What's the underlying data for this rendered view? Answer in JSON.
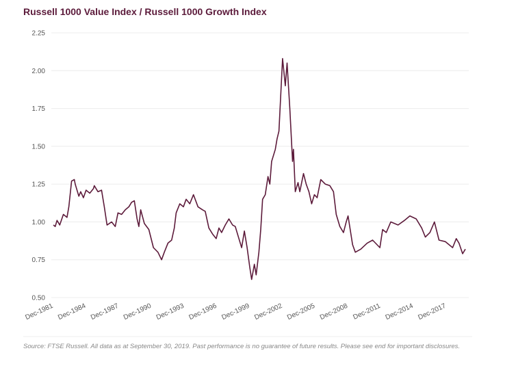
{
  "chart_data": {
    "type": "line",
    "title": "Russell 1000 Value Index / Russell 1000 Growth Index",
    "source": "Source: FTSE Russell. All data as at September 30, 2019. Past performance is no guarantee of future results. Please see end for important disclosures.",
    "x": [
      "Dec-1981",
      "Feb-1982",
      "Apr-1982",
      "Jul-1982",
      "Nov-1982",
      "Mar-1983",
      "May-1983",
      "Aug-1983",
      "Nov-1983",
      "Dec-1983",
      "Apr-1984",
      "Jun-1984",
      "Sep-1984",
      "Dec-1984",
      "Apr-1985",
      "Aug-1985",
      "Sep-1985",
      "Jan-1986",
      "May-1986",
      "Aug-1986",
      "Nov-1986",
      "Apr-1987",
      "Aug-1987",
      "Nov-1987",
      "Mar-1988",
      "Jul-1988",
      "Nov-1988",
      "Feb-1989",
      "May-1989",
      "Aug-1989",
      "Oct-1989",
      "Dec-1989",
      "Apr-1990",
      "Sep-1990",
      "Feb-1991",
      "Jul-1991",
      "Nov-1991",
      "Feb-1992",
      "Jun-1992",
      "Oct-1992",
      "Jan-1993",
      "Mar-1993",
      "Jul-1993",
      "Nov-1993",
      "Feb-1994",
      "Jun-1994",
      "Oct-1994",
      "Mar-1995",
      "Aug-1995",
      "Nov-1995",
      "Mar-1996",
      "Jul-1996",
      "Nov-1996",
      "Feb-1997",
      "May-1997",
      "Sep-1997",
      "Jan-1998",
      "May-1998",
      "Aug-1998",
      "Dec-1998",
      "Mar-1999",
      "Jun-1999",
      "Sep-1999",
      "Dec-1999",
      "Feb-2000",
      "May-2000",
      "Jul-2000",
      "Oct-2000",
      "Dec-2000",
      "Feb-2001",
      "May-2001",
      "Aug-2001",
      "Oct-2001",
      "Dec-2001",
      "Apr-2002",
      "Jun-2002",
      "Aug-2002",
      "Dec-2002",
      "Mar-2003",
      "May-2003",
      "Aug-2003",
      "Nov-2003",
      "Dec-2003",
      "Feb-2004",
      "May-2004",
      "Jul-2004",
      "Nov-2004",
      "Feb-2005",
      "May-2005",
      "Aug-2005",
      "Nov-2005",
      "Feb-2006",
      "Jun-2006",
      "Nov-2006",
      "Apr-2007",
      "Aug-2007",
      "Nov-2007",
      "Mar-2008",
      "Jul-2008",
      "Oct-2008",
      "Dec-2008",
      "May-2009",
      "Aug-2009",
      "Feb-2010",
      "Sep-2010",
      "Mar-2011",
      "Nov-2011",
      "Feb-2012",
      "Jun-2012",
      "Nov-2012",
      "Jul-2013",
      "Feb-2014",
      "Aug-2014",
      "Mar-2015",
      "Sep-2015",
      "Jan-2016",
      "Jun-2016",
      "Nov-2016",
      "Apr-2017",
      "Nov-2017",
      "Jul-2018",
      "Nov-2018",
      "Feb-2019",
      "Jun-2019",
      "Sep-2019"
    ],
    "series": [
      {
        "name": "Russell 1000 Value Index / Russell 1000 Growth Index",
        "color": "#5c1a3a",
        "values": [
          0.98,
          0.97,
          1.01,
          0.98,
          1.05,
          1.03,
          1.1,
          1.27,
          1.28,
          1.25,
          1.17,
          1.2,
          1.16,
          1.21,
          1.19,
          1.22,
          1.24,
          1.2,
          1.21,
          1.1,
          0.98,
          1.0,
          0.97,
          1.06,
          1.05,
          1.08,
          1.1,
          1.13,
          1.14,
          1.02,
          0.97,
          1.08,
          0.99,
          0.95,
          0.83,
          0.8,
          0.75,
          0.8,
          0.86,
          0.88,
          0.96,
          1.06,
          1.12,
          1.1,
          1.15,
          1.12,
          1.18,
          1.1,
          1.08,
          1.07,
          0.96,
          0.92,
          0.89,
          0.96,
          0.93,
          0.98,
          1.02,
          0.98,
          0.97,
          0.89,
          0.83,
          0.94,
          0.83,
          0.7,
          0.62,
          0.72,
          0.65,
          0.8,
          0.95,
          1.15,
          1.18,
          1.3,
          1.25,
          1.4,
          1.48,
          1.55,
          1.6,
          2.08,
          1.9,
          2.05,
          1.75,
          1.4,
          1.48,
          1.2,
          1.26,
          1.2,
          1.32,
          1.25,
          1.2,
          1.12,
          1.18,
          1.16,
          1.28,
          1.25,
          1.24,
          1.2,
          1.05,
          0.97,
          0.93,
          1.0,
          1.04,
          0.85,
          0.8,
          0.82,
          0.86,
          0.88,
          0.83,
          0.95,
          0.93,
          1.0,
          0.98,
          1.01,
          1.04,
          1.02,
          0.96,
          0.9,
          0.93,
          1.0,
          0.88,
          0.87,
          0.83,
          0.89,
          0.86,
          0.79,
          0.82
        ]
      }
    ],
    "xlim": [
      "Dec-1981",
      "Sep-2019"
    ],
    "xticks": [
      "Dec-1981",
      "Dec-1984",
      "Dec-1987",
      "Dec-1990",
      "Dec-1993",
      "Dec-1996",
      "Dec-1999",
      "Dec-2002",
      "Dec-2005",
      "Dec-2008",
      "Dec-2011",
      "Dec-2014",
      "Dec-2017"
    ],
    "ylim": [
      0.5,
      2.25
    ],
    "yticks": [
      {
        "value": 0.5,
        "label": "0.50"
      },
      {
        "value": 0.75,
        "label": "0.75"
      },
      {
        "value": 1,
        "label": "1.00"
      },
      {
        "value": 1.25,
        "label": "1.25"
      },
      {
        "value": 1.5,
        "label": "1.50"
      },
      {
        "value": 1.75,
        "label": "1.75"
      },
      {
        "value": 2,
        "label": "2.00"
      },
      {
        "value": 2.25,
        "label": "2.25"
      }
    ],
    "grid": true
  }
}
